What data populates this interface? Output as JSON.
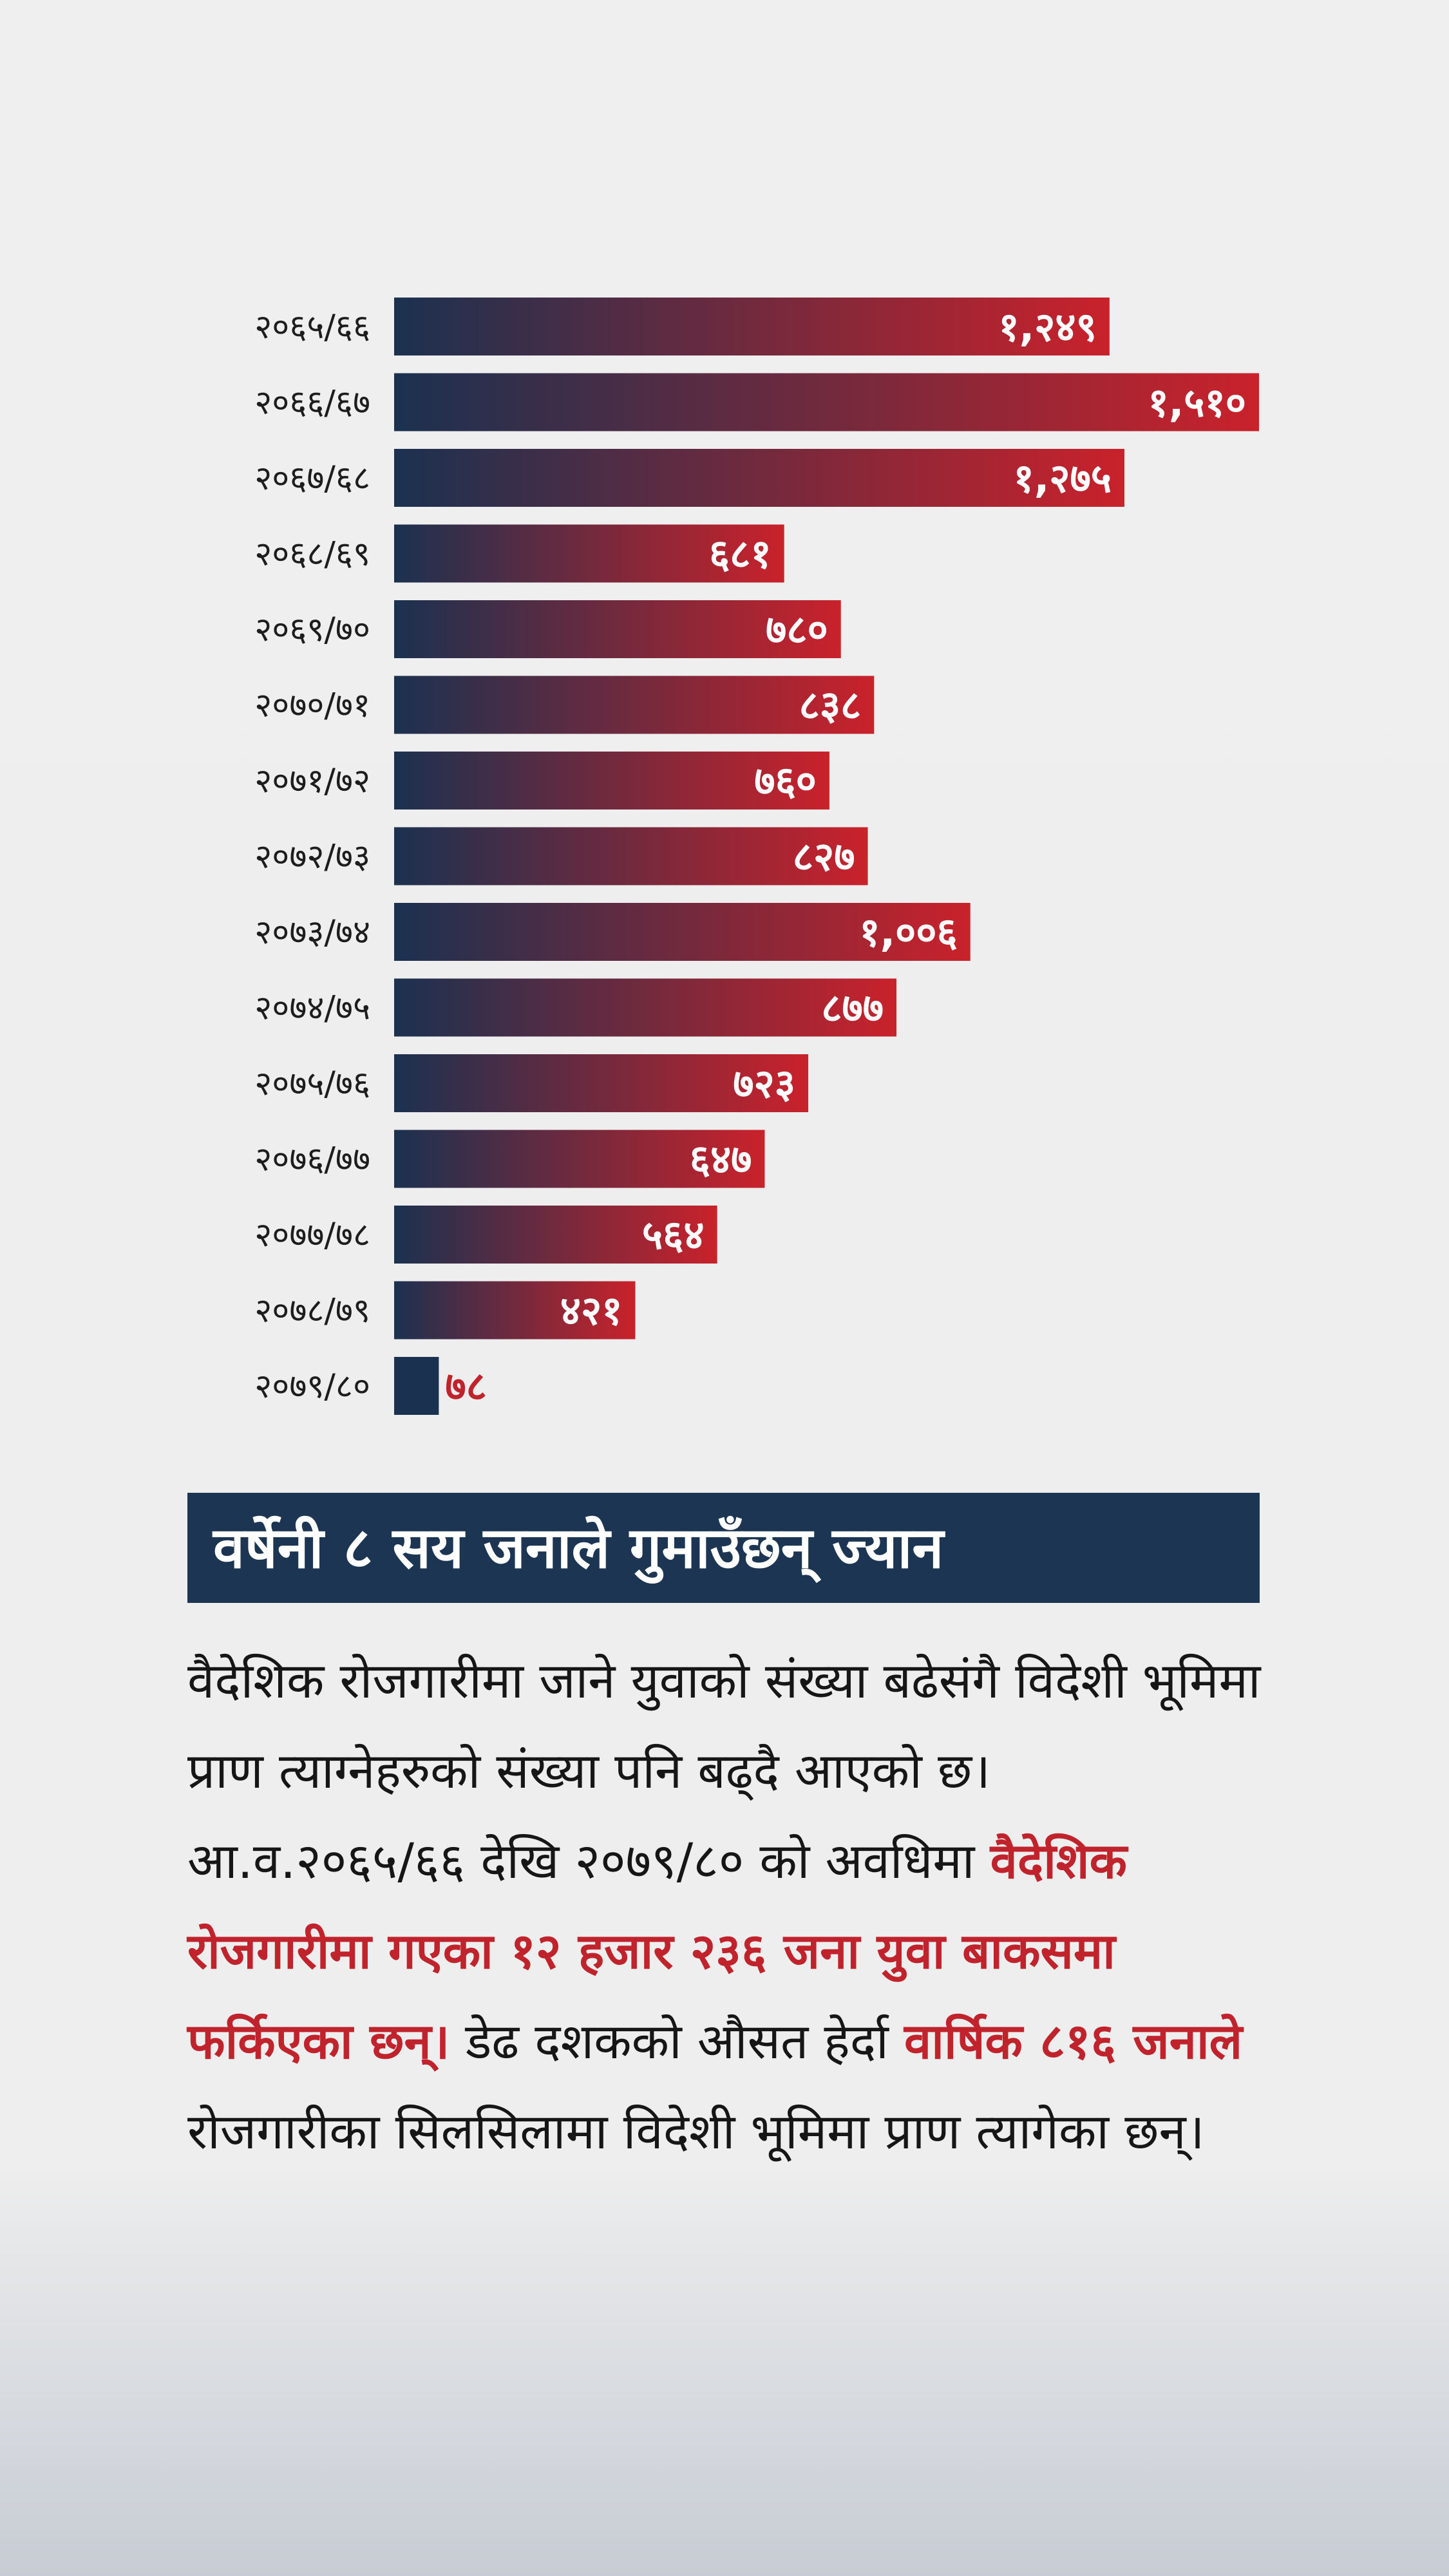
{
  "chart_data": {
    "type": "bar",
    "orientation": "horizontal",
    "categories": [
      "२०६५/६६",
      "२०६६/६७",
      "२०६७/६८",
      "२०६८/६९",
      "२०६९/७०",
      "२०७०/७१",
      "२०७१/७२",
      "२०७२/७३",
      "२०७३/७४",
      "२०७४/७५",
      "२०७५/७६",
      "२०७६/७७",
      "२०७७/७८",
      "२०७८/७९",
      "२०७९/८०"
    ],
    "values": [
      1249,
      1510,
      1275,
      681,
      780,
      838,
      760,
      827,
      1006,
      877,
      723,
      647,
      564,
      421,
      78
    ],
    "value_labels": [
      "१,२४९",
      "१,५१०",
      "१,२७५",
      "६८१",
      "७८०",
      "८३८",
      "७६०",
      "८२७",
      "१,००६",
      "८७७",
      "७२३",
      "६४७",
      "५६४",
      "४२१",
      "७८"
    ],
    "xlim": [
      0,
      1510
    ],
    "grid": false,
    "colors": {
      "bar_start": "#1b3150",
      "bar_end": "#c9222b",
      "value_text": "#ffffff",
      "small_value_text": "#c0232b"
    }
  },
  "headline": "वर्षेनी ८ सय जनाले गुमाउँछन् ज्यान",
  "article": {
    "p1": "वैदेशिक रोजगारीमा जाने युवाको संख्या बढेसंगै विदेशी भूमिमा प्राण त्याग्नेहरुको संख्या पनि बढ्दै आएको छ। आ.व.२०६५/६६ देखि २०७९/८० को अवधिमा ",
    "h1": "वैदेशिक रोजगारीमा गएका १२ हजार २३६ जना युवा बाकसमा फर्किएका छन्।",
    "p2": " डेढ दशकको औसत हेर्दा ",
    "h2": "वार्षिक ८१६ जनाले",
    "p3": " रोजगारीका सिलसिलामा विदेशी भूमिमा प्राण त्यागेका छन्।"
  },
  "colors": {
    "headline_bg": "#1b3553",
    "highlight": "#c0232b"
  }
}
